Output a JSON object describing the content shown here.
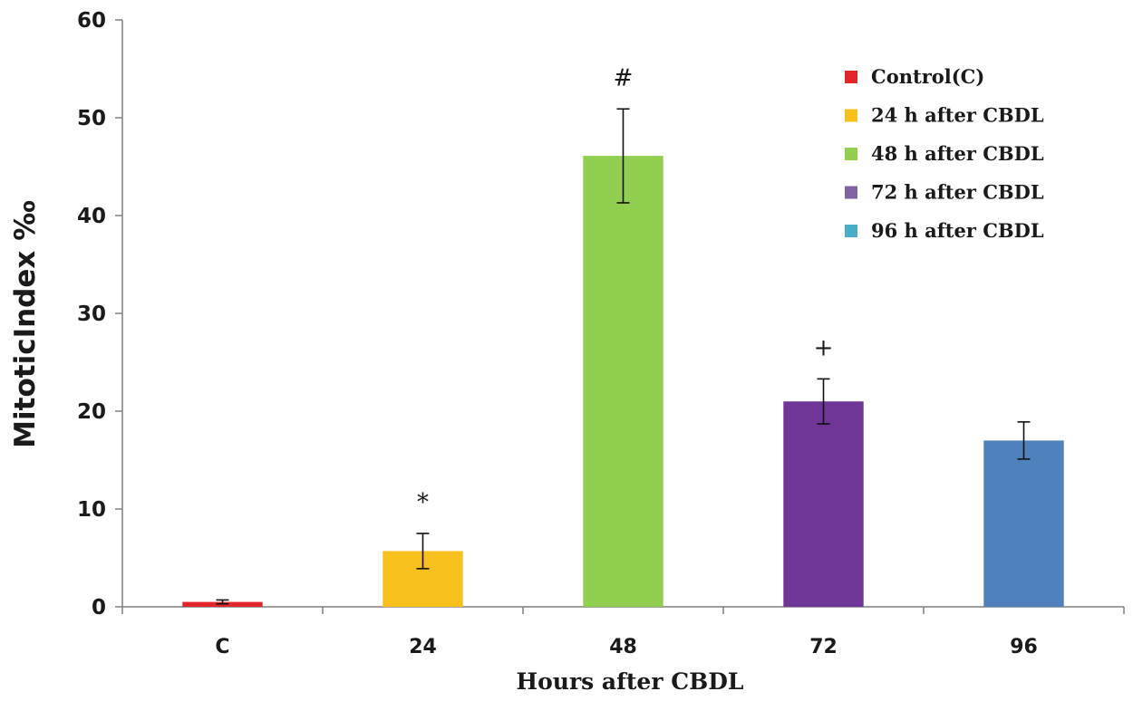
{
  "chart_data": {
    "type": "bar",
    "title": "",
    "xlabel": "Hours after CBDL",
    "ylabel": "MitoticIndex ‰",
    "ylim": [
      0,
      60
    ],
    "yticks": [
      "0",
      "10",
      "20",
      "30",
      "40",
      "50",
      "60"
    ],
    "categories": [
      "C",
      "24",
      "48",
      "72",
      "96"
    ],
    "values": [
      0.5,
      5.7,
      46.1,
      21.0,
      17.0
    ],
    "errors": [
      0.2,
      1.8,
      4.8,
      2.3,
      1.9
    ],
    "annotations": [
      "",
      "*",
      "#",
      "+",
      ""
    ],
    "colors": [
      "#e3262c",
      "#f8c01c",
      "#92cf50",
      "#6f3697",
      "#4f81bd"
    ],
    "legend": [
      "Control(C)",
      "24 h after CBDL",
      "48 h after CBDL",
      "72 h after CBDL",
      "96 h after CBDL"
    ],
    "legend_colors": [
      "#e3262c",
      "#f8c01c",
      "#92cf50",
      "#8064a2",
      "#4bacc6"
    ],
    "legend_position": "top-right",
    "grid": false
  }
}
